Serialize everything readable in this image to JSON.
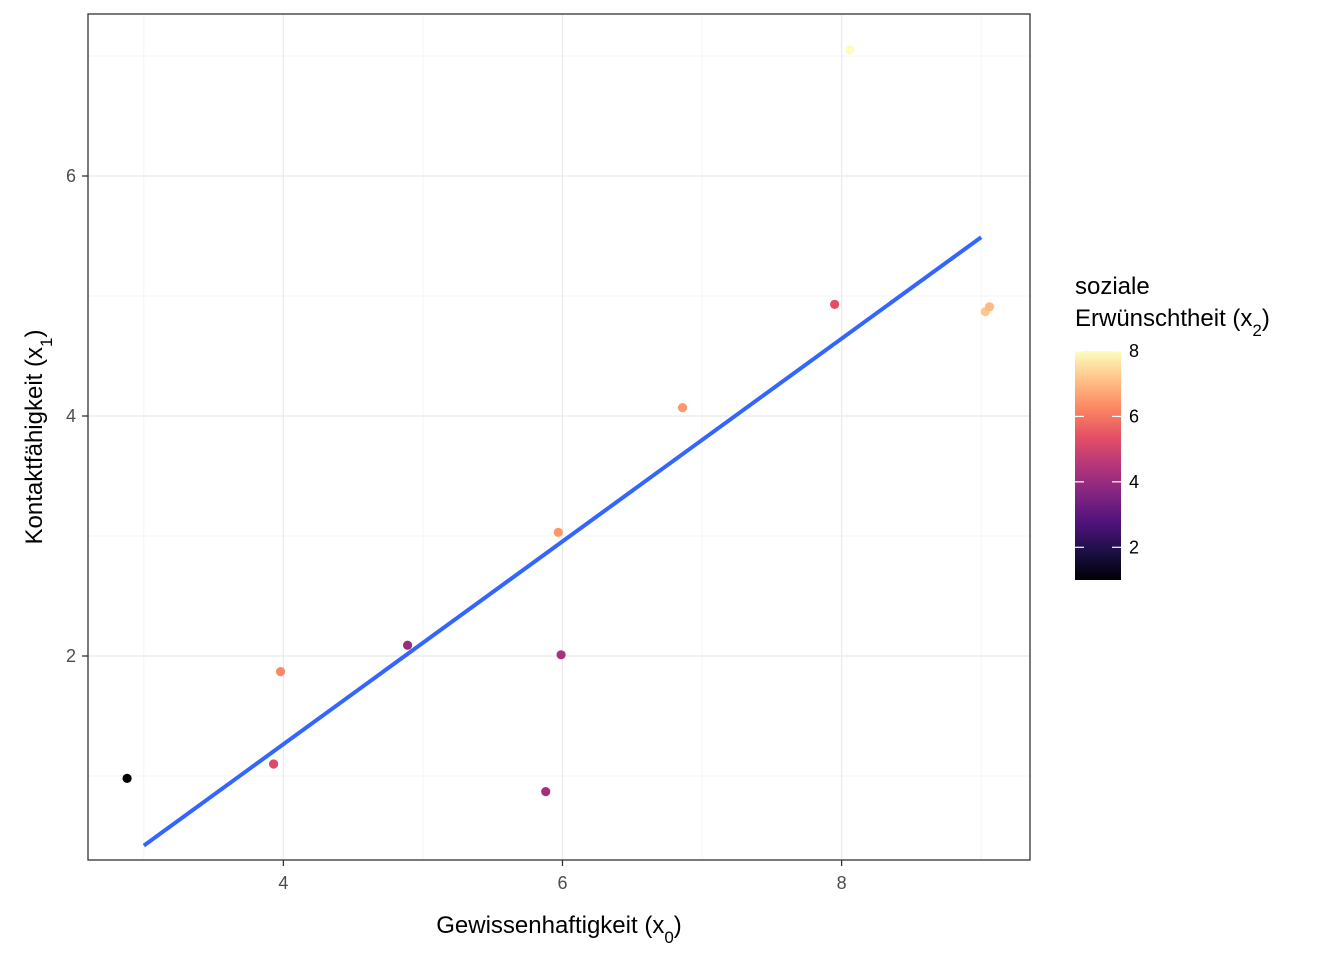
{
  "chart_data": {
    "type": "scatter",
    "xlabel": "Gewissenhaftigkeit (x",
    "xlabel_sub": "0",
    "xlabel_end": ")",
    "ylabel": "Kontaktfähigkeit (x",
    "ylabel_sub": "1",
    "ylabel_end": ")",
    "xlim": [
      2.6,
      9.35
    ],
    "ylim": [
      0.3,
      7.35
    ],
    "x_ticks": [
      4,
      6,
      8
    ],
    "x_tick_labels": [
      "4",
      "6",
      "8"
    ],
    "y_ticks": [
      2,
      4,
      6
    ],
    "y_tick_labels": [
      "2",
      "4",
      "6"
    ],
    "grid": true,
    "points": [
      {
        "x": 2.88,
        "y": 0.98,
        "color_value": 1.0
      },
      {
        "x": 3.93,
        "y": 1.1,
        "color_value": 5.2
      },
      {
        "x": 3.98,
        "y": 1.87,
        "color_value": 6.3
      },
      {
        "x": 4.89,
        "y": 2.09,
        "color_value": 4.0
      },
      {
        "x": 5.88,
        "y": 0.87,
        "color_value": 4.2
      },
      {
        "x": 5.97,
        "y": 3.03,
        "color_value": 6.5
      },
      {
        "x": 5.99,
        "y": 2.01,
        "color_value": 4.3
      },
      {
        "x": 6.86,
        "y": 4.07,
        "color_value": 6.5
      },
      {
        "x": 7.95,
        "y": 4.93,
        "color_value": 5.3
      },
      {
        "x": 8.06,
        "y": 7.05,
        "color_value": 8.0
      },
      {
        "x": 9.03,
        "y": 4.87,
        "color_value": 7.2
      },
      {
        "x": 9.06,
        "y": 4.91,
        "color_value": 7.0
      }
    ],
    "regression_line": {
      "x": [
        3.0,
        9.0
      ],
      "y": [
        0.42,
        5.49
      ],
      "color": "#3366FF"
    },
    "legend": {
      "title_line1": "soziale",
      "title_line2": "Erwünschtheit (x",
      "title_sub": "2",
      "title_end": ")",
      "range": [
        1.0,
        8.0
      ],
      "ticks": [
        2,
        4,
        6,
        8
      ],
      "tick_labels": [
        "2",
        "4",
        "6",
        "8"
      ],
      "placement": "right"
    },
    "colors": {
      "colorscale": [
        "#000004",
        "#1c1044",
        "#4f127b",
        "#812581",
        "#b5367a",
        "#e55064",
        "#fb8761",
        "#fec287",
        "#fcfdbf"
      ],
      "panel_border": "#333333",
      "grid_major": "#ebebeb",
      "grid_minor": "#f5f5f5"
    }
  }
}
